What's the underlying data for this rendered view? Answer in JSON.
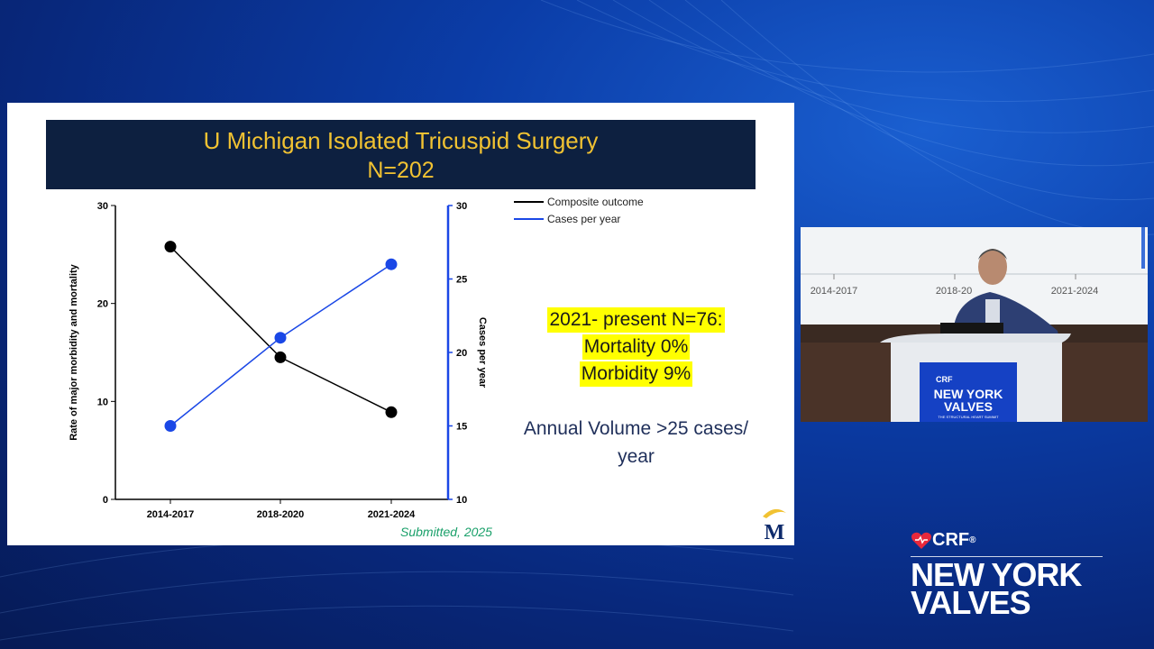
{
  "slide": {
    "title": "U Michigan Isolated Tricuspid Surgery",
    "subtitle": "N=202",
    "highlight_lines": [
      "2021- present N=76:",
      "Mortality 0%",
      "Morbidity 9%"
    ],
    "volume_lines": [
      "Annual Volume >25 cases/",
      "year"
    ],
    "citation": "Submitted, 2025",
    "logo_letter": "M"
  },
  "chart_data": {
    "type": "line",
    "categories": [
      "2014-2017",
      "2018-2020",
      "2021-2024"
    ],
    "ylabel": "Rate of major morbidity and mortality",
    "y2label": "Cases per year",
    "ylim": [
      0,
      30
    ],
    "y2lim": [
      10,
      30
    ],
    "yticks": [
      0,
      10,
      20,
      30
    ],
    "y2ticks": [
      10,
      15,
      20,
      25,
      30
    ],
    "series": [
      {
        "name": "Composite outcome",
        "axis": "left",
        "color": "#000000",
        "values": [
          25.8,
          14.5,
          8.9
        ]
      },
      {
        "name": "Cases per year",
        "axis": "right",
        "color": "#1a47e6",
        "values": [
          15,
          21,
          26
        ]
      }
    ],
    "legend": "top-right"
  },
  "video": {
    "screen_labels": [
      "2014-2017",
      "2018-20",
      "2021-2024"
    ],
    "podium_brand": [
      "CRF",
      "NEW YORK",
      "VALVES",
      "THE STRUCTURAL HEART SUMMIT"
    ]
  },
  "brand": {
    "crf": "CRF",
    "reg": "®",
    "line1": "NEW YORK",
    "line2": "VALVES"
  },
  "colors": {
    "title_bar": "#0d2040",
    "title_text": "#f1c232",
    "highlight": "#ffff00",
    "accent_blue": "#1a47e6",
    "citation": "#1aa06a"
  }
}
